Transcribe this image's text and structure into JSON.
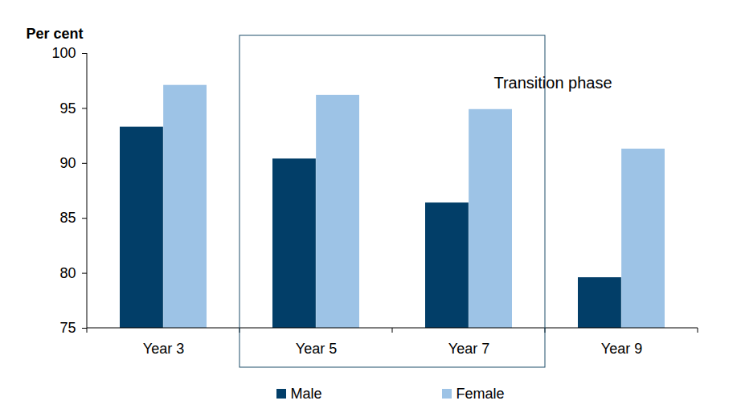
{
  "chart_data": {
    "type": "bar",
    "y_label": "Per cent",
    "categories": [
      "Year 3",
      "Year 5",
      "Year 7",
      "Year 9"
    ],
    "series": [
      {
        "name": "Male",
        "color": "#023e68",
        "values": [
          93.3,
          90.4,
          86.4,
          79.6
        ]
      },
      {
        "name": "Female",
        "color": "#9dc3e6",
        "values": [
          97.1,
          96.2,
          94.9,
          91.3
        ]
      }
    ],
    "ylim": [
      75,
      100
    ],
    "yticks": [
      75,
      80,
      85,
      90,
      95,
      100
    ],
    "grid": false,
    "legend": "bottom",
    "annotations": [
      {
        "text": "Transition phase",
        "categories": [
          "Year 5",
          "Year 7"
        ]
      }
    ]
  }
}
